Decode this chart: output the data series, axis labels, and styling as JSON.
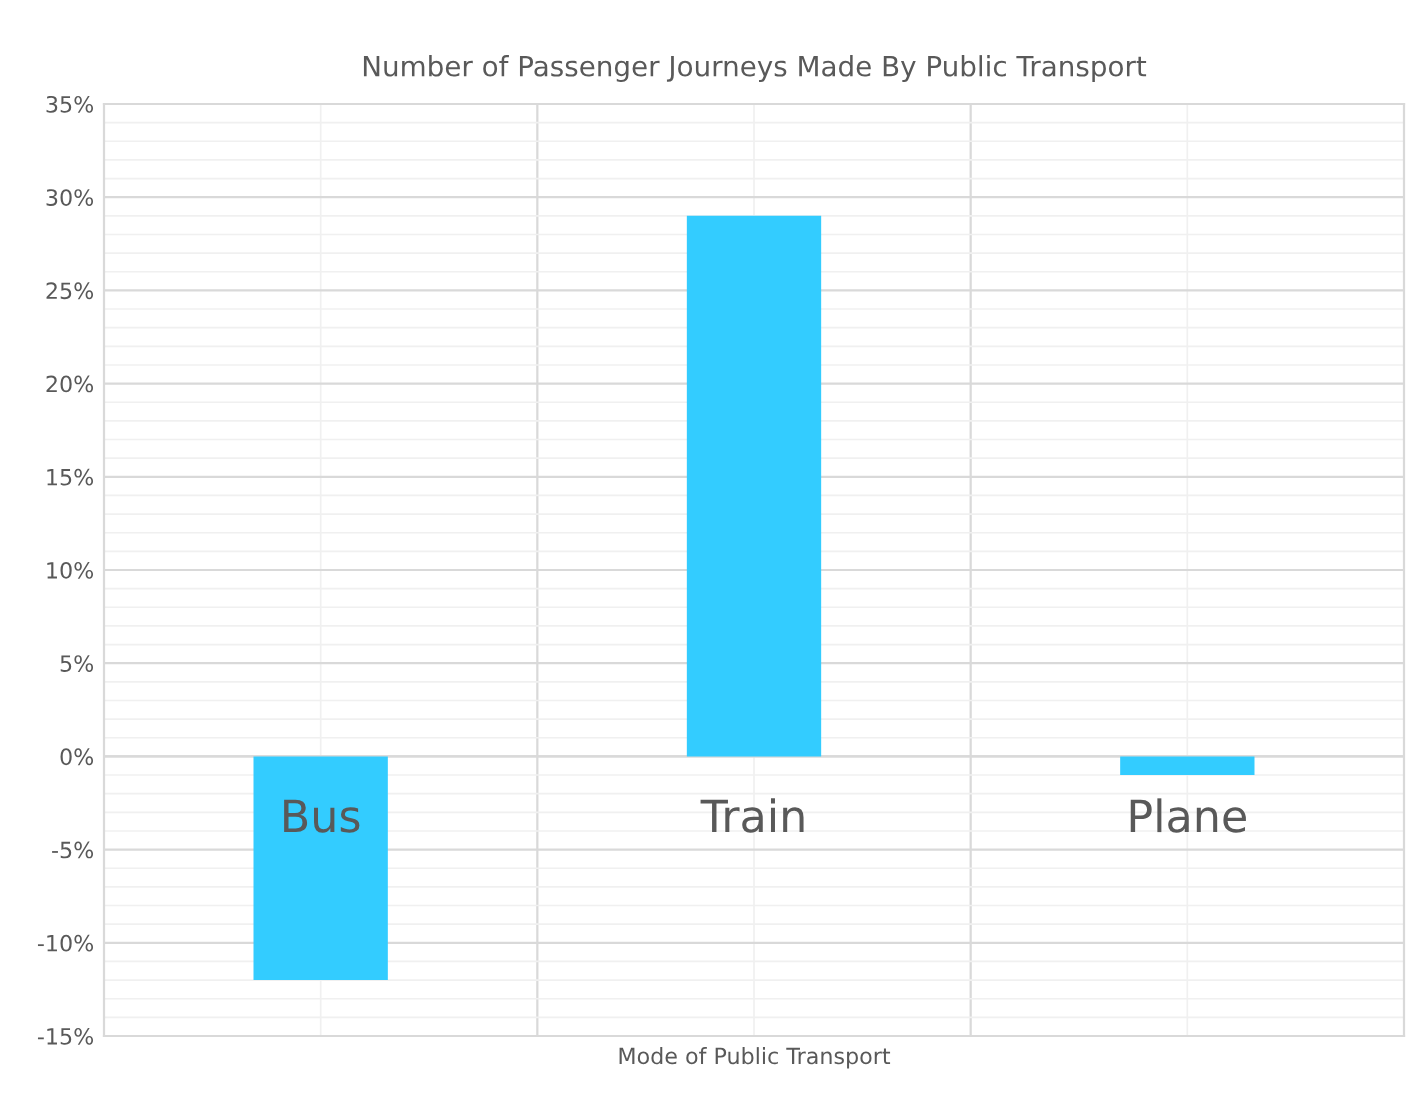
{
  "chart_data": {
    "type": "bar",
    "title": "Number of Passenger Journeys Made By Public Transport",
    "xlabel": "Mode of Public Transport",
    "categories": [
      "Bus",
      "Train",
      "Plane"
    ],
    "values": [
      -12,
      29,
      -1
    ],
    "color": "#33ccff",
    "ylim": [
      -15,
      35
    ],
    "yticks": [
      {
        "value": -15,
        "label": "-15%"
      },
      {
        "value": -10,
        "label": "-10%"
      },
      {
        "value": -5,
        "label": "-5%"
      },
      {
        "value": 0,
        "label": "0%"
      },
      {
        "value": 5,
        "label": "5%"
      },
      {
        "value": 10,
        "label": "10%"
      },
      {
        "value": 15,
        "label": "15%"
      },
      {
        "value": 20,
        "label": "20%"
      },
      {
        "value": 25,
        "label": "25%"
      },
      {
        "value": 30,
        "label": "30%"
      },
      {
        "value": 35,
        "label": "35%"
      }
    ],
    "grid": true
  }
}
